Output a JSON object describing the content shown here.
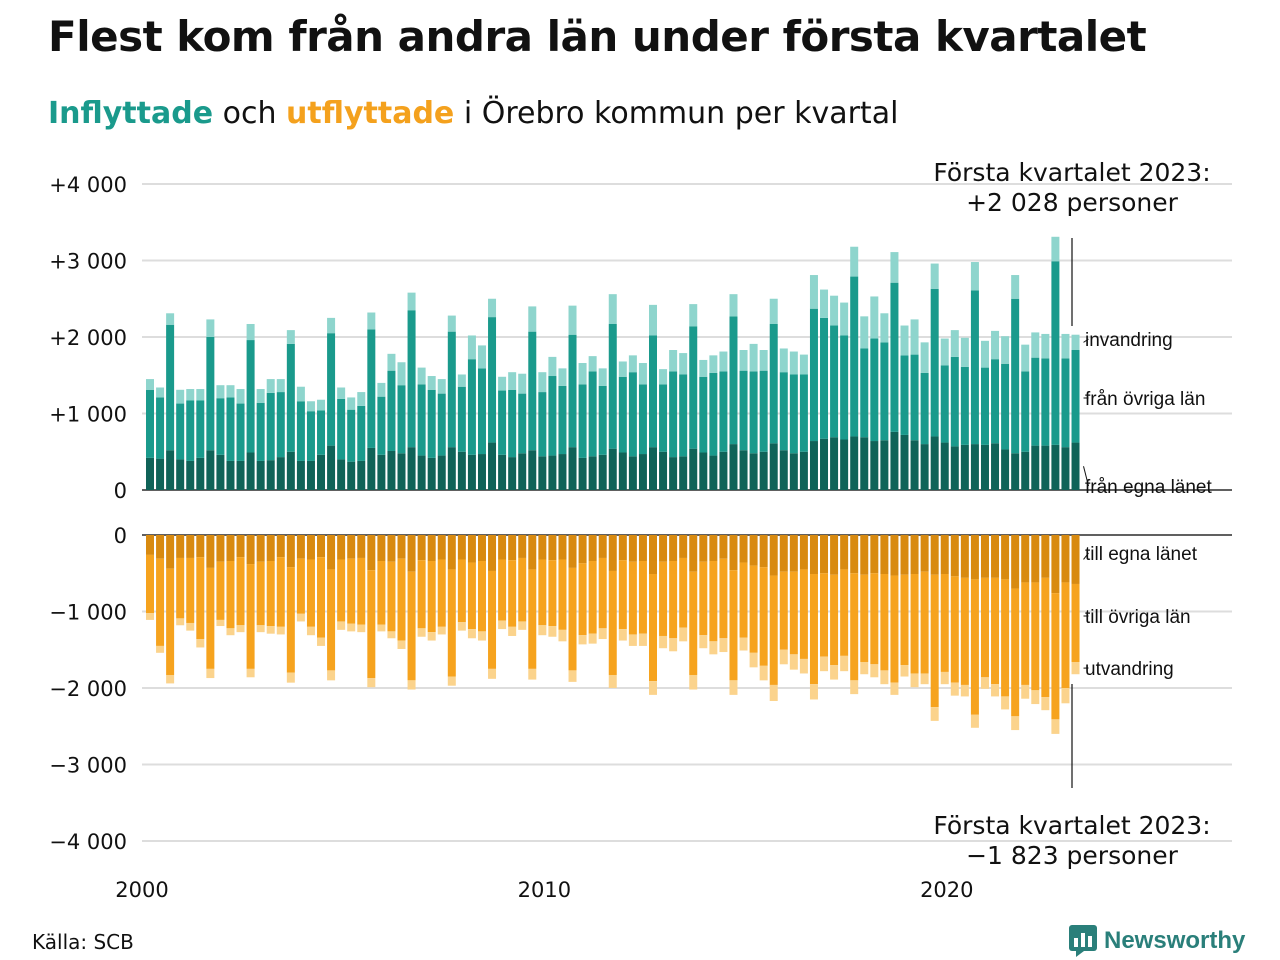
{
  "title": "Flest kom från andra län under första kvartalet",
  "subtitle": {
    "in_word": "Inflyttade",
    "and_word": "och",
    "out_word": "utflyttade",
    "rest": "i Örebro kommun per kvartal"
  },
  "source": "Källa: SCB",
  "logo": {
    "text": "Newsworthy",
    "icon": "bar-chart-logo-icon",
    "color": "#2a7f7a"
  },
  "colors": {
    "in_own": "#0f6358",
    "in_other": "#1a9a8c",
    "in_abroad": "#8ed5cd",
    "out_own": "#d88a10",
    "out_other": "#f6a31e",
    "out_abroad": "#fbd38c"
  },
  "annotations": {
    "top_line1": "Första kvartalet 2023:",
    "top_line2": "+2 028 personer",
    "bottom_line1": "Första kvartalet 2023:",
    "bottom_line2": "−1 823 personer"
  },
  "chart_data": {
    "type": "bar",
    "stacked": true,
    "x_start": "2000 Q1",
    "x_end": "2023 Q1",
    "x_tick_labels": [
      "2000",
      "2010",
      "2020"
    ],
    "y_tick_labels_top": [
      "0",
      "+1 000",
      "+2 000",
      "+3 000",
      "+4 000"
    ],
    "y_tick_labels_bottom": [
      "0",
      "−1 000",
      "−2 000",
      "−3 000",
      "−4 000"
    ],
    "ylim": [
      -4000,
      4000
    ],
    "series_labels": {
      "in_abroad": "invandring",
      "in_other": "från övriga län",
      "in_own": "från egna länet",
      "out_own": "till egna länet",
      "out_other": "till övriga län",
      "out_abroad": "utvandring"
    },
    "quarters": [
      "2000 Q1",
      "2000 Q2",
      "2000 Q3",
      "2000 Q4",
      "2001 Q1",
      "2001 Q2",
      "2001 Q3",
      "2001 Q4",
      "2002 Q1",
      "2002 Q2",
      "2002 Q3",
      "2002 Q4",
      "2003 Q1",
      "2003 Q2",
      "2003 Q3",
      "2003 Q4",
      "2004 Q1",
      "2004 Q2",
      "2004 Q3",
      "2004 Q4",
      "2005 Q1",
      "2005 Q2",
      "2005 Q3",
      "2005 Q4",
      "2006 Q1",
      "2006 Q2",
      "2006 Q3",
      "2006 Q4",
      "2007 Q1",
      "2007 Q2",
      "2007 Q3",
      "2007 Q4",
      "2008 Q1",
      "2008 Q2",
      "2008 Q3",
      "2008 Q4",
      "2009 Q1",
      "2009 Q2",
      "2009 Q3",
      "2009 Q4",
      "2010 Q1",
      "2010 Q2",
      "2010 Q3",
      "2010 Q4",
      "2011 Q1",
      "2011 Q2",
      "2011 Q3",
      "2011 Q4",
      "2012 Q1",
      "2012 Q2",
      "2012 Q3",
      "2012 Q4",
      "2013 Q1",
      "2013 Q2",
      "2013 Q3",
      "2013 Q4",
      "2014 Q1",
      "2014 Q2",
      "2014 Q3",
      "2014 Q4",
      "2015 Q1",
      "2015 Q2",
      "2015 Q3",
      "2015 Q4",
      "2016 Q1",
      "2016 Q2",
      "2016 Q3",
      "2016 Q4",
      "2017 Q1",
      "2017 Q2",
      "2017 Q3",
      "2017 Q4",
      "2018 Q1",
      "2018 Q2",
      "2018 Q3",
      "2018 Q4",
      "2019 Q1",
      "2019 Q2",
      "2019 Q3",
      "2019 Q4",
      "2020 Q1",
      "2020 Q2",
      "2020 Q3",
      "2020 Q4",
      "2021 Q1",
      "2021 Q2",
      "2021 Q3",
      "2021 Q4",
      "2022 Q1",
      "2022 Q2",
      "2022 Q3",
      "2022 Q4",
      "2023 Q1"
    ],
    "inflow": {
      "own": [
        420,
        410,
        520,
        400,
        380,
        420,
        520,
        460,
        380,
        380,
        490,
        380,
        390,
        430,
        500,
        380,
        380,
        460,
        580,
        400,
        370,
        380,
        550,
        460,
        510,
        480,
        560,
        450,
        420,
        450,
        560,
        500,
        460,
        470,
        620,
        460,
        430,
        480,
        520,
        440,
        450,
        470,
        560,
        420,
        440,
        460,
        540,
        490,
        440,
        470,
        560,
        500,
        430,
        440,
        540,
        490,
        450,
        500,
        600,
        520,
        480,
        500,
        610,
        520,
        480,
        500,
        640,
        670,
        690,
        660,
        700,
        690,
        640,
        650,
        760,
        720,
        650,
        600,
        700,
        620,
        570,
        590,
        600,
        590,
        610,
        530,
        480,
        500,
        580,
        580,
        590,
        560,
        620
      ],
      "other": [
        890,
        800,
        1640,
        730,
        790,
        750,
        1480,
        740,
        830,
        750,
        1470,
        760,
        880,
        850,
        1410,
        780,
        650,
        580,
        1470,
        790,
        680,
        720,
        1550,
        760,
        1050,
        890,
        1790,
        930,
        890,
        810,
        1510,
        850,
        1250,
        1120,
        1640,
        840,
        880,
        780,
        1550,
        840,
        1040,
        890,
        1470,
        960,
        1110,
        900,
        1630,
        990,
        1100,
        910,
        1460,
        880,
        1120,
        1070,
        1600,
        990,
        1080,
        1050,
        1670,
        1040,
        1070,
        1060,
        1560,
        1020,
        1030,
        1010,
        1730,
        1580,
        1460,
        1360,
        2090,
        1160,
        1340,
        1280,
        1950,
        1040,
        1120,
        930,
        1930,
        1010,
        1170,
        1020,
        2010,
        1010,
        1100,
        1120,
        2020,
        1050,
        1150,
        1140,
        2400,
        1160,
        1210
      ],
      "abroad": [
        140,
        130,
        150,
        180,
        150,
        150,
        230,
        170,
        160,
        190,
        210,
        180,
        180,
        170,
        180,
        190,
        130,
        140,
        200,
        150,
        160,
        180,
        220,
        180,
        220,
        300,
        230,
        220,
        180,
        190,
        210,
        160,
        310,
        300,
        240,
        180,
        230,
        260,
        330,
        260,
        250,
        230,
        380,
        280,
        200,
        230,
        390,
        200,
        220,
        280,
        400,
        200,
        280,
        280,
        290,
        220,
        230,
        260,
        290,
        270,
        360,
        270,
        330,
        310,
        300,
        260,
        440,
        370,
        390,
        430,
        390,
        420,
        550,
        380,
        400,
        390,
        460,
        400,
        330,
        350,
        350,
        380,
        370,
        350,
        370,
        360,
        310,
        350,
        330,
        320,
        320,
        320,
        200
      ]
    },
    "outflow": {
      "own": [
        -260,
        -310,
        -440,
        -300,
        -300,
        -290,
        -430,
        -350,
        -340,
        -290,
        -380,
        -350,
        -340,
        -290,
        -420,
        -310,
        -320,
        -290,
        -450,
        -320,
        -310,
        -300,
        -460,
        -340,
        -350,
        -310,
        -480,
        -330,
        -340,
        -320,
        -450,
        -320,
        -360,
        -340,
        -470,
        -320,
        -330,
        -300,
        -450,
        -320,
        -330,
        -320,
        -430,
        -370,
        -340,
        -300,
        -470,
        -330,
        -350,
        -340,
        -510,
        -350,
        -340,
        -300,
        -480,
        -350,
        -340,
        -310,
        -460,
        -360,
        -400,
        -420,
        -530,
        -480,
        -480,
        -450,
        -510,
        -500,
        -520,
        -450,
        -500,
        -520,
        -500,
        -510,
        -530,
        -520,
        -510,
        -480,
        -520,
        -510,
        -540,
        -560,
        -580,
        -560,
        -560,
        -580,
        -700,
        -620,
        -620,
        -560,
        -760,
        -620,
        -640
      ],
      "other": [
        -760,
        -1140,
        -1390,
        -790,
        -850,
        -1070,
        -1320,
        -760,
        -880,
        -890,
        -1370,
        -830,
        -850,
        -910,
        -1380,
        -720,
        -880,
        -1050,
        -1320,
        -810,
        -850,
        -870,
        -1410,
        -830,
        -910,
        -1070,
        -1420,
        -890,
        -930,
        -880,
        -1400,
        -820,
        -870,
        -920,
        -1280,
        -800,
        -870,
        -830,
        -1300,
        -860,
        -860,
        -920,
        -1340,
        -940,
        -950,
        -920,
        -1360,
        -900,
        -950,
        -950,
        -1400,
        -970,
        -1010,
        -910,
        -1350,
        -960,
        -1050,
        -1040,
        -1440,
        -980,
        -1140,
        -1290,
        -1430,
        -1020,
        -1080,
        -1170,
        -1440,
        -1090,
        -1180,
        -1130,
        -1400,
        -1140,
        -1190,
        -1260,
        -1400,
        -1180,
        -1300,
        -1330,
        -1730,
        -1280,
        -1390,
        -1400,
        -1770,
        -1300,
        -1390,
        -1530,
        -1670,
        -1340,
        -1410,
        -1560,
        -1650,
        -1380,
        -1020
      ],
      "abroad": [
        -90,
        -90,
        -110,
        -90,
        -100,
        -110,
        -120,
        -80,
        -90,
        -90,
        -110,
        -90,
        -100,
        -100,
        -130,
        -100,
        -110,
        -110,
        -130,
        -110,
        -100,
        -100,
        -120,
        -90,
        -90,
        -110,
        -120,
        -110,
        -110,
        -100,
        -120,
        -110,
        -120,
        -120,
        -130,
        -110,
        -120,
        -110,
        -140,
        -130,
        -140,
        -150,
        -150,
        -120,
        -130,
        -140,
        -170,
        -150,
        -150,
        -160,
        -180,
        -160,
        -170,
        -180,
        -190,
        -170,
        -170,
        -180,
        -190,
        -170,
        -190,
        -190,
        -210,
        -190,
        -200,
        -190,
        -200,
        -190,
        -190,
        -200,
        -180,
        -160,
        -170,
        -180,
        -160,
        -150,
        -180,
        -140,
        -180,
        -160,
        -170,
        -150,
        -170,
        -150,
        -160,
        -170,
        -180,
        -180,
        -180,
        -170,
        -190,
        -200,
        -160
      ]
    }
  }
}
